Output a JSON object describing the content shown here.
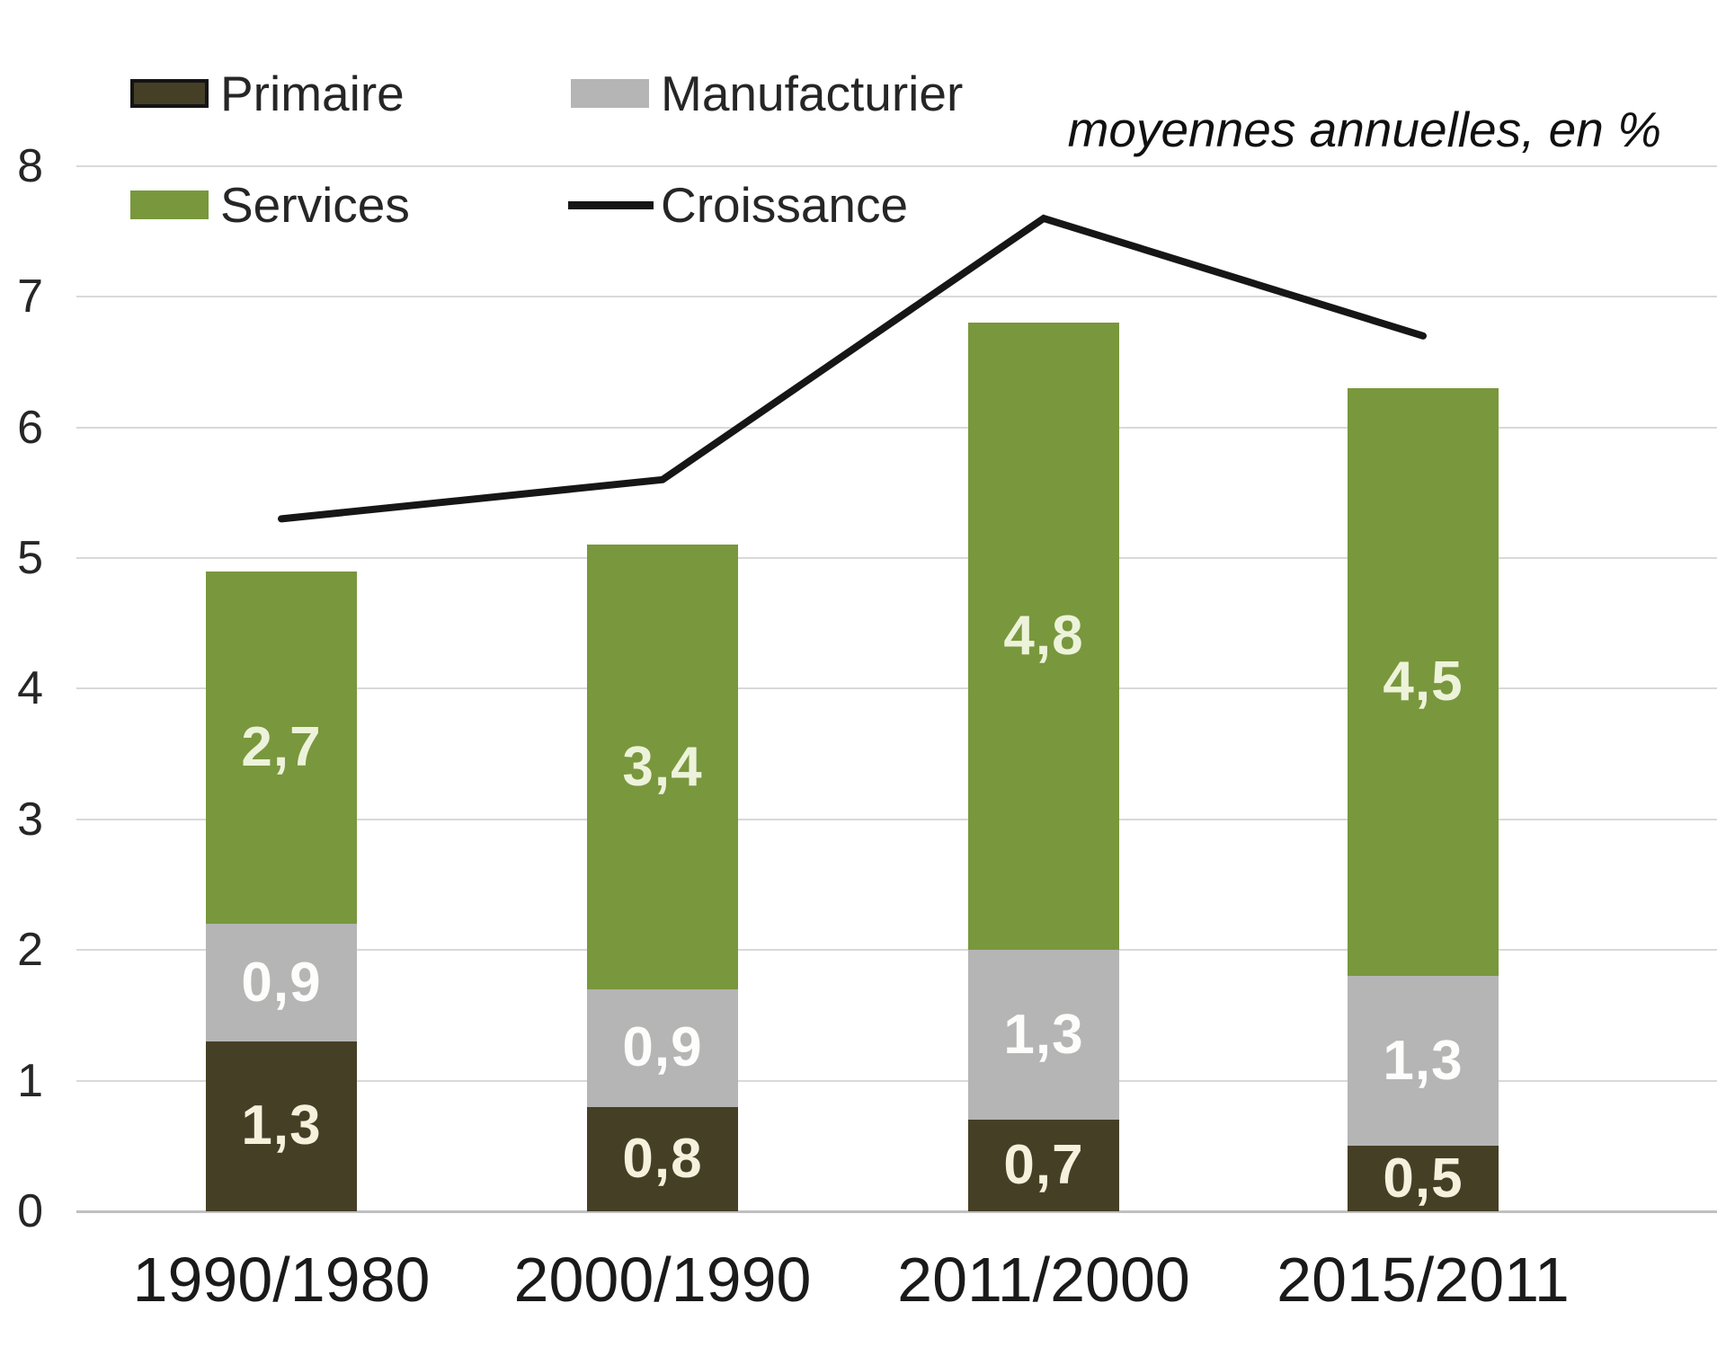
{
  "annotation": "moyennes annuelles, en %",
  "chart_data": {
    "type": "bar",
    "subtype": "stacked-bars-with-line-overlay",
    "categories": [
      "1990/1980",
      "2000/1990",
      "2011/2000",
      "2015/2011"
    ],
    "series": [
      {
        "name": "Primaire",
        "type": "bar",
        "color": "#453f26",
        "label_color": "#f5f1dc",
        "values": [
          1.3,
          0.8,
          0.7,
          0.5
        ]
      },
      {
        "name": "Manufacturier",
        "type": "bar",
        "color": "#b5b5b5",
        "label_color": "#fdfdfc",
        "values": [
          0.9,
          0.9,
          1.3,
          1.3
        ]
      },
      {
        "name": "Services",
        "type": "bar",
        "color": "#79973d",
        "label_color": "#edf3da",
        "values": [
          2.7,
          3.4,
          4.8,
          4.5
        ]
      },
      {
        "name": "Croissance",
        "type": "line",
        "color": "#161616",
        "values": [
          5.3,
          5.6,
          7.6,
          6.7
        ]
      }
    ],
    "bar_totals": [
      4.9,
      5.1,
      6.8,
      6.3
    ],
    "title": "",
    "xlabel": "",
    "ylabel": "",
    "ylim": [
      0,
      8
    ],
    "y_ticks": [
      0,
      1,
      2,
      3,
      4,
      5,
      6,
      7,
      8
    ],
    "grid": true,
    "legend_position": "top-left",
    "decimal_separator": ",",
    "annotation": "moyennes annuelles, en %",
    "grid_color": "#d9d9d9",
    "axis_color": "#c0c0c0"
  }
}
